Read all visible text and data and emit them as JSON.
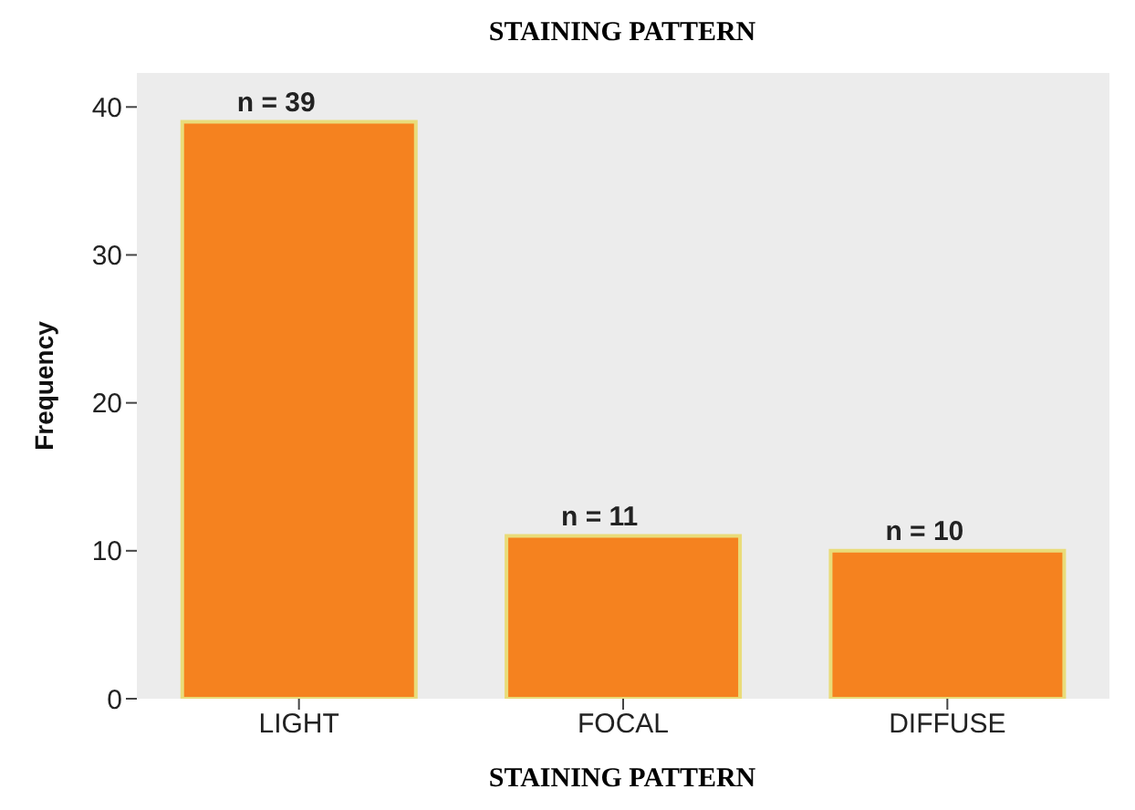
{
  "chart_data": {
    "type": "bar",
    "title": "STAINING PATTERN",
    "xlabel": "STAINING PATTERN",
    "ylabel": "Frequency",
    "categories": [
      "LIGHT",
      "FOCAL",
      "DIFFUSE"
    ],
    "values": [
      39,
      11,
      10
    ],
    "value_labels": [
      "n = 39",
      "n = 11",
      "n = 10"
    ],
    "color": "#f5821f",
    "ylim": [
      0,
      42.3
    ],
    "yticks": [
      0,
      10,
      20,
      30,
      40
    ],
    "grid": false
  }
}
